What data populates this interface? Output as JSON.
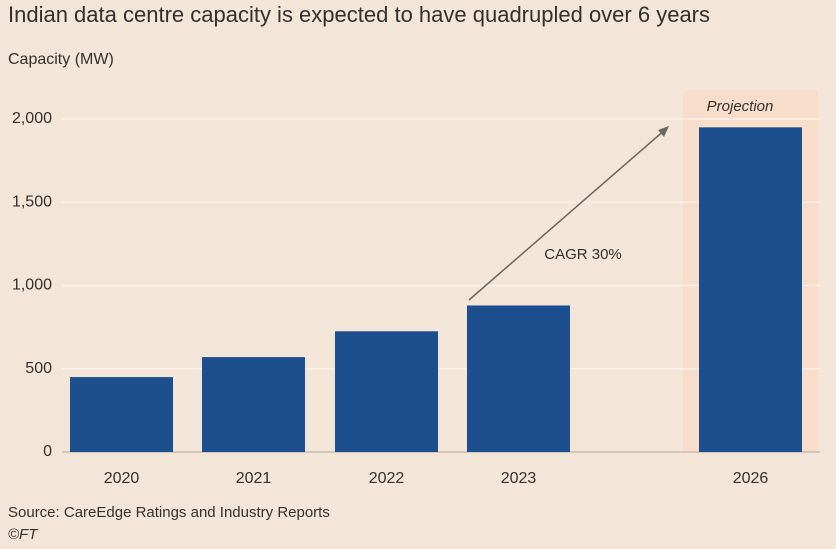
{
  "chart_data": {
    "type": "bar",
    "title": "Indian data centre capacity is expected to have quadrupled over 6 years",
    "y_label": "Capacity (MW)",
    "categories": [
      "2020",
      "2021",
      "2022",
      "2023",
      "2026"
    ],
    "values": [
      450,
      570,
      725,
      880,
      1950
    ],
    "color": "#1d4f8f",
    "ylim": [
      0,
      2000
    ],
    "yticks": [
      0,
      500,
      {
        "value": 1000,
        "label": "1,000"
      },
      {
        "value": 1500,
        "label": "1,500"
      },
      {
        "value": 2000,
        "label": "2,000"
      }
    ],
    "grid": true,
    "annotation": "CAGR 30%",
    "projection_label": "Projection",
    "source": "Source: CareEdge Ratings and Industry Reports",
    "credit": "©FT"
  }
}
